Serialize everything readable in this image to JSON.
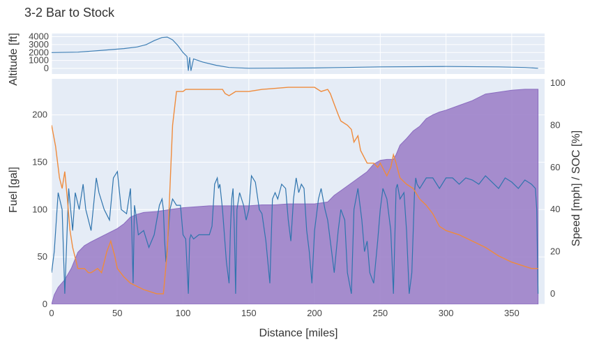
{
  "chart_data": {
    "type": "line",
    "title": "3-2 Bar to Stock",
    "xlabel": "Distance [miles]",
    "xlim": [
      0,
      375
    ],
    "xticks": [
      0,
      50,
      100,
      150,
      200,
      250,
      300,
      350
    ],
    "colors": {
      "altitude": "#3f7fb5",
      "fuel": "#9d82c9",
      "speed": "#2f74ad",
      "soc": "#ef8b3c",
      "plot_bg": "#e5ecf6"
    },
    "panels": [
      {
        "id": "altitude",
        "ylabel": "Altitude [ft]",
        "ylim": [
          -700,
          4400
        ],
        "yticks": [
          0,
          1000,
          2000,
          3000,
          4000
        ],
        "series": [
          {
            "type": "line",
            "x": [
              0,
              20,
              40,
              55,
              65,
              72,
              78,
              84,
              88,
              92,
              96,
              100,
              103,
              104,
              105,
              106,
              108,
              115,
              125,
              135,
              150,
              200,
              250,
              300,
              340,
              360,
              370
            ],
            "y": [
              2000,
              2050,
              2300,
              2500,
              2700,
              3000,
              3500,
              3900,
              3950,
              3600,
              2900,
              2000,
              1500,
              -300,
              1400,
              -300,
              1200,
              800,
              400,
              120,
              20,
              60,
              200,
              250,
              200,
              120,
              20
            ]
          }
        ]
      },
      {
        "id": "main",
        "ylabel": "Fuel [gal]",
        "ylabel2": "Speed [mph] / SOC [%]",
        "ylim": [
          0,
          238
        ],
        "yticks": [
          0,
          50,
          100,
          150,
          200
        ],
        "y2lim": [
          -5,
          102
        ],
        "y2ticks": [
          0,
          20,
          40,
          60,
          80,
          100
        ],
        "series": [
          {
            "type": "area",
            "axis": "y",
            "x": [
              0,
              2,
              5,
              10,
              15,
              20,
              25,
              30,
              40,
              50,
              55,
              60,
              65,
              70,
              80,
              90,
              100,
              110,
              120,
              130,
              140,
              150,
              160,
              170,
              180,
              190,
              200,
              210,
              215,
              220,
              230,
              240,
              245,
              250,
              255,
              260,
              262,
              265,
              270,
              275,
              280,
              285,
              290,
              295,
              300,
              310,
              320,
              330,
              340,
              350,
              360,
              365,
              370
            ],
            "y": [
              0,
              10,
              18,
              26,
              38,
              55,
              62,
              66,
              73,
              80,
              85,
              92,
              95,
              97,
              98,
              100,
              102,
              103,
              104,
              104,
              104,
              104,
              105,
              105,
              106,
              106,
              106,
              108,
              115,
              120,
              130,
              140,
              148,
              152,
              153,
              153,
              158,
              168,
              175,
              183,
              188,
              196,
              200,
              203,
              205,
              210,
              215,
              222,
              224,
              226,
              227,
              227,
              227
            ]
          },
          {
            "type": "line",
            "axis": "y2",
            "x": [
              0,
              2,
              5,
              8,
              10,
              13,
              16,
              18,
              21,
              24,
              26,
              30,
              34,
              36,
              40,
              44,
              47,
              50,
              53,
              57,
              60,
              61,
              62,
              63,
              64,
              66,
              70,
              74,
              78,
              82,
              84,
              85,
              86,
              87,
              88,
              90,
              92,
              95,
              98,
              100,
              102,
              104,
              105,
              106,
              108,
              112,
              116,
              120,
              122,
              124,
              126,
              127,
              128,
              130,
              133,
              135,
              136,
              137,
              138,
              139,
              140,
              141,
              143,
              146,
              148,
              150,
              152,
              155,
              158,
              160,
              163,
              166,
              168,
              170,
              172,
              175,
              178,
              180,
              182,
              184,
              186,
              188,
              190,
              192,
              194,
              196,
              198,
              200,
              203,
              205,
              208,
              210,
              213,
              215,
              218,
              220,
              223,
              225,
              228,
              230,
              233,
              236,
              238,
              240,
              242,
              245,
              248,
              250,
              252,
              255,
              258,
              260,
              261,
              262,
              263,
              265,
              268,
              270,
              272,
              274,
              276,
              277,
              278,
              280,
              285,
              290,
              295,
              300,
              305,
              310,
              315,
              320,
              325,
              330,
              335,
              340,
              345,
              350,
              355,
              360,
              365,
              368,
              369,
              370
            ],
            "y": [
              10,
              20,
              48,
              40,
              0,
              50,
              30,
              48,
              40,
              52,
              40,
              30,
              55,
              48,
              40,
              35,
              55,
              58,
              40,
              38,
              50,
              30,
              5,
              42,
              38,
              28,
              30,
              22,
              28,
              42,
              45,
              40,
              25,
              15,
              22,
              40,
              45,
              42,
              42,
              28,
              26,
              0,
              26,
              28,
              26,
              28,
              28,
              28,
              32,
              52,
              55,
              50,
              52,
              40,
              15,
              5,
              30,
              45,
              50,
              30,
              0,
              40,
              48,
              42,
              35,
              40,
              56,
              53,
              40,
              38,
              25,
              5,
              45,
              48,
              45,
              52,
              50,
              35,
              25,
              45,
              55,
              48,
              52,
              50,
              30,
              20,
              5,
              30,
              45,
              50,
              40,
              35,
              20,
              10,
              30,
              40,
              35,
              10,
              0,
              40,
              50,
              35,
              20,
              25,
              10,
              5,
              25,
              40,
              50,
              45,
              30,
              0,
              25,
              50,
              52,
              45,
              48,
              30,
              0,
              10,
              48,
              55,
              52,
              50,
              55,
              55,
              50,
              55,
              55,
              52,
              55,
              54,
              52,
              56,
              53,
              50,
              55,
              53,
              50,
              54,
              52,
              50,
              40,
              0
            ]
          },
          {
            "type": "line",
            "axis": "y2",
            "x": [
              0,
              3,
              6,
              8,
              10,
              12,
              14,
              16,
              20,
              25,
              28,
              30,
              35,
              38,
              40,
              42,
              45,
              48,
              50,
              55,
              60,
              70,
              80,
              85,
              88,
              90,
              92,
              95,
              100,
              102,
              104,
              110,
              120,
              130,
              132,
              135,
              140,
              150,
              160,
              180,
              190,
              200,
              205,
              210,
              212,
              215,
              218,
              220,
              225,
              228,
              230,
              233,
              235,
              240,
              245,
              248,
              250,
              255,
              258,
              260,
              262,
              265,
              270,
              275,
              280,
              285,
              290,
              295,
              300,
              310,
              320,
              330,
              340,
              350,
              360,
              365,
              370
            ],
            "y": [
              80,
              70,
              55,
              50,
              58,
              45,
              30,
              22,
              12,
              12,
              10,
              10,
              12,
              10,
              15,
              20,
              25,
              18,
              12,
              8,
              5,
              2,
              0,
              0,
              20,
              50,
              80,
              96,
              96,
              97,
              97,
              97,
              97,
              97,
              95,
              94,
              96,
              96,
              97,
              98,
              98,
              98,
              96,
              97,
              95,
              90,
              85,
              82,
              80,
              78,
              72,
              75,
              68,
              62,
              62,
              60,
              62,
              56,
              60,
              66,
              62,
              55,
              52,
              50,
              45,
              42,
              38,
              32,
              30,
              28,
              25,
              22,
              18,
              15,
              13,
              12,
              12
            ]
          }
        ]
      }
    ]
  }
}
